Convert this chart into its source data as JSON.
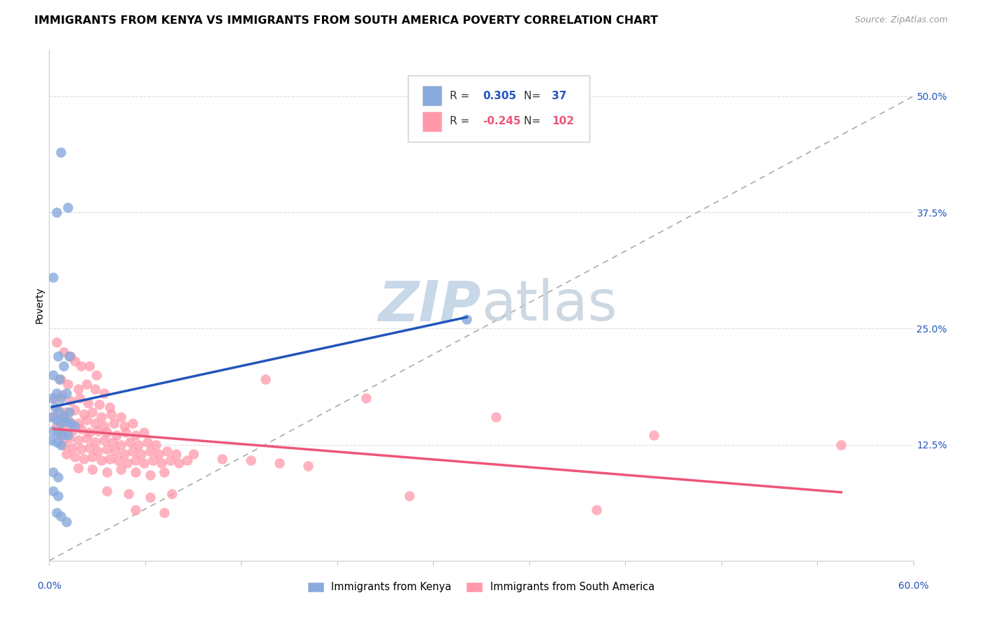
{
  "title": "IMMIGRANTS FROM KENYA VS IMMIGRANTS FROM SOUTH AMERICA POVERTY CORRELATION CHART",
  "source": "Source: ZipAtlas.com",
  "ylabel": "Poverty",
  "right_yticks": [
    0.125,
    0.25,
    0.375,
    0.5
  ],
  "right_yticklabels": [
    "12.5%",
    "25.0%",
    "37.5%",
    "50.0%"
  ],
  "xlim": [
    0.0,
    0.6
  ],
  "ylim": [
    0.0,
    0.55
  ],
  "kenya_color": "#88AADD",
  "sa_color": "#FF99AA",
  "kenya_trend_color": "#2255BB",
  "sa_trend_color": "#EE5577",
  "ref_line_color": "#AAAAAA",
  "watermark_color": "#C8D8E8",
  "legend_label_kenya": "Immigrants from Kenya",
  "legend_label_sa": "Immigrants from South America",
  "title_fontsize": 11.5,
  "source_fontsize": 9,
  "axis_label_fontsize": 10,
  "tick_fontsize": 10,
  "kenya_scatter": [
    [
      0.008,
      0.44
    ],
    [
      0.013,
      0.38
    ],
    [
      0.005,
      0.375
    ],
    [
      0.003,
      0.305
    ],
    [
      0.006,
      0.22
    ],
    [
      0.01,
      0.21
    ],
    [
      0.014,
      0.22
    ],
    [
      0.003,
      0.2
    ],
    [
      0.007,
      0.195
    ],
    [
      0.002,
      0.175
    ],
    [
      0.005,
      0.18
    ],
    [
      0.008,
      0.175
    ],
    [
      0.012,
      0.18
    ],
    [
      0.004,
      0.165
    ],
    [
      0.007,
      0.16
    ],
    [
      0.01,
      0.155
    ],
    [
      0.014,
      0.16
    ],
    [
      0.002,
      0.155
    ],
    [
      0.005,
      0.152
    ],
    [
      0.008,
      0.148
    ],
    [
      0.012,
      0.15
    ],
    [
      0.015,
      0.148
    ],
    [
      0.018,
      0.145
    ],
    [
      0.003,
      0.14
    ],
    [
      0.006,
      0.138
    ],
    [
      0.009,
      0.135
    ],
    [
      0.013,
      0.135
    ],
    [
      0.002,
      0.13
    ],
    [
      0.005,
      0.128
    ],
    [
      0.008,
      0.125
    ],
    [
      0.003,
      0.095
    ],
    [
      0.006,
      0.09
    ],
    [
      0.003,
      0.075
    ],
    [
      0.006,
      0.07
    ],
    [
      0.005,
      0.052
    ],
    [
      0.008,
      0.048
    ],
    [
      0.012,
      0.042
    ],
    [
      0.29,
      0.26
    ]
  ],
  "sa_scatter": [
    [
      0.005,
      0.235
    ],
    [
      0.01,
      0.225
    ],
    [
      0.015,
      0.22
    ],
    [
      0.018,
      0.215
    ],
    [
      0.022,
      0.21
    ],
    [
      0.028,
      0.21
    ],
    [
      0.033,
      0.2
    ],
    [
      0.008,
      0.195
    ],
    [
      0.013,
      0.19
    ],
    [
      0.02,
      0.185
    ],
    [
      0.026,
      0.19
    ],
    [
      0.032,
      0.185
    ],
    [
      0.038,
      0.18
    ],
    [
      0.004,
      0.175
    ],
    [
      0.009,
      0.178
    ],
    [
      0.015,
      0.172
    ],
    [
      0.021,
      0.175
    ],
    [
      0.027,
      0.17
    ],
    [
      0.035,
      0.168
    ],
    [
      0.042,
      0.165
    ],
    [
      0.006,
      0.163
    ],
    [
      0.012,
      0.16
    ],
    [
      0.018,
      0.162
    ],
    [
      0.024,
      0.158
    ],
    [
      0.03,
      0.16
    ],
    [
      0.036,
      0.155
    ],
    [
      0.043,
      0.158
    ],
    [
      0.05,
      0.155
    ],
    [
      0.003,
      0.155
    ],
    [
      0.008,
      0.152
    ],
    [
      0.014,
      0.15
    ],
    [
      0.02,
      0.148
    ],
    [
      0.026,
      0.152
    ],
    [
      0.032,
      0.148
    ],
    [
      0.038,
      0.145
    ],
    [
      0.045,
      0.148
    ],
    [
      0.052,
      0.145
    ],
    [
      0.058,
      0.148
    ],
    [
      0.005,
      0.145
    ],
    [
      0.01,
      0.142
    ],
    [
      0.016,
      0.14
    ],
    [
      0.022,
      0.142
    ],
    [
      0.028,
      0.138
    ],
    [
      0.034,
      0.14
    ],
    [
      0.04,
      0.138
    ],
    [
      0.047,
      0.135
    ],
    [
      0.053,
      0.138
    ],
    [
      0.06,
      0.135
    ],
    [
      0.066,
      0.138
    ],
    [
      0.008,
      0.135
    ],
    [
      0.014,
      0.132
    ],
    [
      0.02,
      0.13
    ],
    [
      0.026,
      0.132
    ],
    [
      0.032,
      0.128
    ],
    [
      0.038,
      0.13
    ],
    [
      0.044,
      0.128
    ],
    [
      0.05,
      0.125
    ],
    [
      0.056,
      0.128
    ],
    [
      0.062,
      0.125
    ],
    [
      0.068,
      0.128
    ],
    [
      0.074,
      0.125
    ],
    [
      0.01,
      0.125
    ],
    [
      0.016,
      0.122
    ],
    [
      0.022,
      0.12
    ],
    [
      0.028,
      0.122
    ],
    [
      0.034,
      0.118
    ],
    [
      0.04,
      0.12
    ],
    [
      0.046,
      0.118
    ],
    [
      0.052,
      0.115
    ],
    [
      0.058,
      0.118
    ],
    [
      0.064,
      0.115
    ],
    [
      0.07,
      0.118
    ],
    [
      0.076,
      0.115
    ],
    [
      0.082,
      0.118
    ],
    [
      0.088,
      0.115
    ],
    [
      0.012,
      0.115
    ],
    [
      0.018,
      0.112
    ],
    [
      0.024,
      0.11
    ],
    [
      0.03,
      0.112
    ],
    [
      0.036,
      0.108
    ],
    [
      0.042,
      0.11
    ],
    [
      0.048,
      0.108
    ],
    [
      0.054,
      0.105
    ],
    [
      0.06,
      0.108
    ],
    [
      0.066,
      0.105
    ],
    [
      0.072,
      0.108
    ],
    [
      0.078,
      0.105
    ],
    [
      0.084,
      0.108
    ],
    [
      0.09,
      0.105
    ],
    [
      0.096,
      0.108
    ],
    [
      0.02,
      0.1
    ],
    [
      0.03,
      0.098
    ],
    [
      0.04,
      0.095
    ],
    [
      0.05,
      0.098
    ],
    [
      0.06,
      0.095
    ],
    [
      0.07,
      0.092
    ],
    [
      0.08,
      0.095
    ],
    [
      0.04,
      0.075
    ],
    [
      0.055,
      0.072
    ],
    [
      0.07,
      0.068
    ],
    [
      0.085,
      0.072
    ],
    [
      0.06,
      0.055
    ],
    [
      0.08,
      0.052
    ],
    [
      0.15,
      0.195
    ],
    [
      0.22,
      0.175
    ],
    [
      0.31,
      0.155
    ],
    [
      0.42,
      0.135
    ],
    [
      0.55,
      0.125
    ],
    [
      0.1,
      0.115
    ],
    [
      0.12,
      0.11
    ],
    [
      0.14,
      0.108
    ],
    [
      0.16,
      0.105
    ],
    [
      0.18,
      0.102
    ],
    [
      0.25,
      0.07
    ],
    [
      0.38,
      0.055
    ]
  ]
}
